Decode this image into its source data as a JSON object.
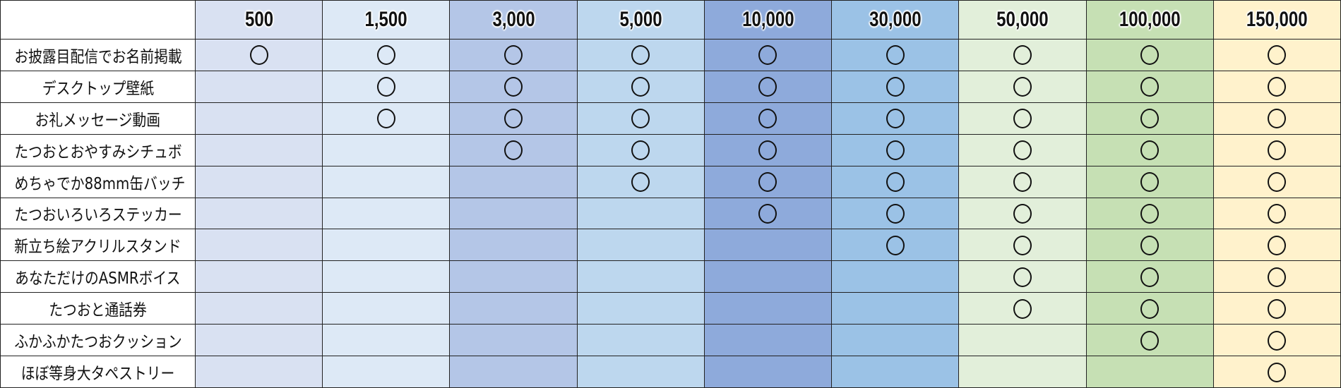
{
  "corner": "",
  "columns": [
    {
      "label": "500",
      "color": "#d9e1f2"
    },
    {
      "label": "1,500",
      "color": "#dde9f6"
    },
    {
      "label": "3,000",
      "color": "#b4c6e7"
    },
    {
      "label": "5,000",
      "color": "#bdd7ee"
    },
    {
      "label": "10,000",
      "color": "#8eaadb"
    },
    {
      "label": "30,000",
      "color": "#9bc2e6"
    },
    {
      "label": "50,000",
      "color": "#e2efda"
    },
    {
      "label": "100,000",
      "color": "#c6e0b4"
    },
    {
      "label": "150,000",
      "color": "#fff2cc"
    }
  ],
  "mark_symbol": "○",
  "rows": [
    {
      "label": "お披露目配信でお名前掲載",
      "marks": [
        true,
        true,
        true,
        true,
        true,
        true,
        true,
        true,
        true
      ]
    },
    {
      "label": "デスクトップ壁紙",
      "marks": [
        false,
        true,
        true,
        true,
        true,
        true,
        true,
        true,
        true
      ]
    },
    {
      "label": "お礼メッセージ動画",
      "marks": [
        false,
        true,
        true,
        true,
        true,
        true,
        true,
        true,
        true
      ]
    },
    {
      "label": "たつおとおやすみシチュボ",
      "marks": [
        false,
        false,
        true,
        true,
        true,
        true,
        true,
        true,
        true
      ]
    },
    {
      "label": "めちゃでか88mm缶バッチ",
      "marks": [
        false,
        false,
        false,
        true,
        true,
        true,
        true,
        true,
        true
      ]
    },
    {
      "label": "たつおいろいろステッカー",
      "marks": [
        false,
        false,
        false,
        false,
        true,
        true,
        true,
        true,
        true
      ]
    },
    {
      "label": "新立ち絵アクリルスタンド",
      "marks": [
        false,
        false,
        false,
        false,
        false,
        true,
        true,
        true,
        true
      ]
    },
    {
      "label": "あなただけのASMRボイス",
      "marks": [
        false,
        false,
        false,
        false,
        false,
        false,
        true,
        true,
        true
      ]
    },
    {
      "label": "たつおと通話券",
      "marks": [
        false,
        false,
        false,
        false,
        false,
        false,
        true,
        true,
        true
      ]
    },
    {
      "label": "ふかふかたつおクッション",
      "marks": [
        false,
        false,
        false,
        false,
        false,
        false,
        false,
        true,
        true
      ]
    },
    {
      "label": "ほぼ等身大タペストリー",
      "marks": [
        false,
        false,
        false,
        false,
        false,
        false,
        false,
        false,
        true
      ]
    }
  ]
}
